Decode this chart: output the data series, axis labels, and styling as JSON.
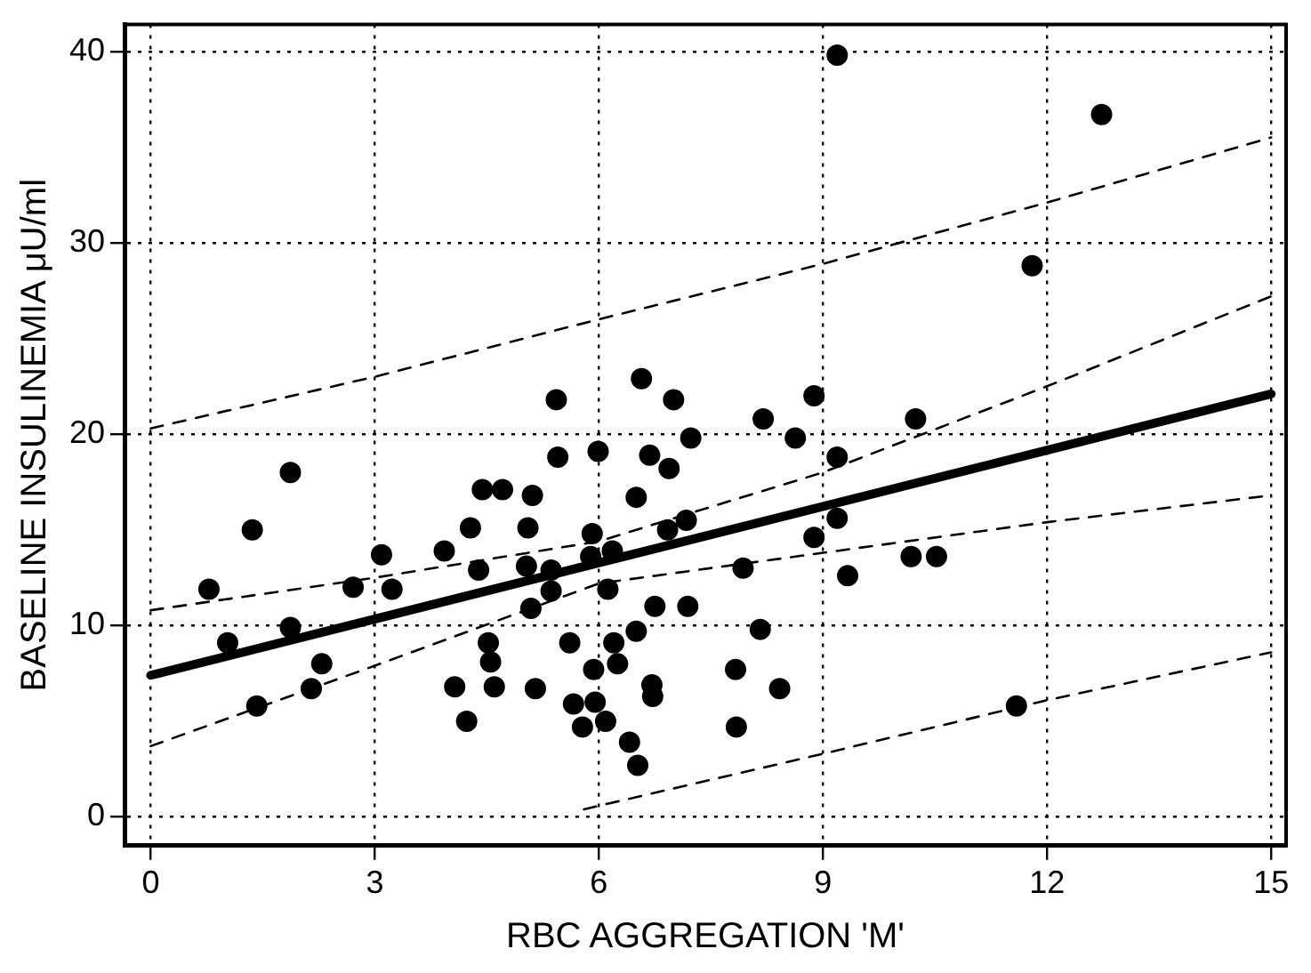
{
  "chart_data": {
    "type": "scatter",
    "xlabel": "RBC AGGREGATION 'M'",
    "ylabel": "BASELINE INSULINEMIA μU/ml",
    "xlim": [
      -0.35,
      15.2
    ],
    "ylim": [
      -1.5,
      41.4
    ],
    "xticks": [
      0,
      3,
      6,
      9,
      12,
      15
    ],
    "yticks": [
      0,
      10,
      20,
      30,
      40
    ],
    "grid": true,
    "legend": false,
    "series": [
      {
        "color": "#000000",
        "marker": "circle",
        "x": [
          1.87,
          1.36,
          0.78,
          1.03,
          1.87,
          2.29,
          2.15,
          1.42,
          2.71,
          3.09,
          3.23,
          3.93,
          4.28,
          4.44,
          4.71,
          5.11,
          5.45,
          5.99,
          6.68,
          6.94,
          7.23,
          6.5,
          5.05,
          4.39,
          5.03,
          5.36,
          5.36,
          5.09,
          5.91,
          5.89,
          6.18,
          6.12,
          6.92,
          7.17,
          6.75,
          7.19,
          6.5,
          5.61,
          6.2,
          6.25,
          5.93,
          6.71,
          6.72,
          4.52,
          4.55,
          4.6,
          4.07,
          4.23,
          5.15,
          5.66,
          5.95,
          5.78,
          6.09,
          6.41,
          6.52,
          8.2,
          8.63,
          9.19,
          9.19,
          8.88,
          7.93,
          10.18,
          10.52,
          9.33,
          8.16,
          7.83,
          8.42,
          7.84,
          11.59,
          10.24,
          9.19,
          12.73,
          11.8,
          7.0,
          8.88,
          5.43,
          6.57
        ],
        "values": [
          18.0,
          15.0,
          11.9,
          9.1,
          9.9,
          8.0,
          6.7,
          5.8,
          12.0,
          13.7,
          11.9,
          13.9,
          15.1,
          17.1,
          17.1,
          16.8,
          18.8,
          19.1,
          18.9,
          18.2,
          19.8,
          16.7,
          15.1,
          12.9,
          13.1,
          12.9,
          11.8,
          10.9,
          14.8,
          13.6,
          13.9,
          11.9,
          15.0,
          15.5,
          11.0,
          11.0,
          9.7,
          9.1,
          9.1,
          8.0,
          7.7,
          6.9,
          6.3,
          9.1,
          8.1,
          6.8,
          6.8,
          5.0,
          6.7,
          5.9,
          6.0,
          4.7,
          5.0,
          3.9,
          2.7,
          20.8,
          19.8,
          18.8,
          15.6,
          14.6,
          13.0,
          13.6,
          13.6,
          12.6,
          9.8,
          7.7,
          6.7,
          4.7,
          5.8,
          20.8,
          39.8,
          36.7,
          28.8,
          21.8,
          22.0,
          21.8,
          22.9
        ]
      },
      {
        "type": "line",
        "color": "#000000",
        "line_style": "solid",
        "x": [
          0,
          15
        ],
        "values": [
          7.4,
          22.1
        ]
      },
      {
        "type": "line",
        "color": "#000000",
        "line_style": "dashed",
        "x": [
          0,
          3,
          6,
          9,
          12,
          15
        ],
        "values": [
          10.8,
          12.5,
          14.4,
          18.0,
          22.5,
          27.2
        ]
      },
      {
        "type": "line",
        "color": "#000000",
        "line_style": "dashed",
        "x": [
          0,
          3,
          6,
          9,
          12,
          15
        ],
        "values": [
          3.7,
          7.9,
          12.2,
          13.8,
          15.4,
          16.8
        ]
      },
      {
        "type": "line",
        "color": "#000000",
        "line_style": "dashed",
        "x": [
          0,
          3,
          6,
          9,
          12,
          15
        ],
        "values": [
          20.3,
          23.0,
          26.0,
          28.9,
          32.1,
          35.5
        ]
      },
      {
        "type": "line",
        "color": "#000000",
        "line_style": "dashed",
        "x": [
          5.8,
          9,
          12,
          15
        ],
        "values": [
          0.4,
          3.3,
          6.1,
          8.6
        ]
      }
    ]
  }
}
